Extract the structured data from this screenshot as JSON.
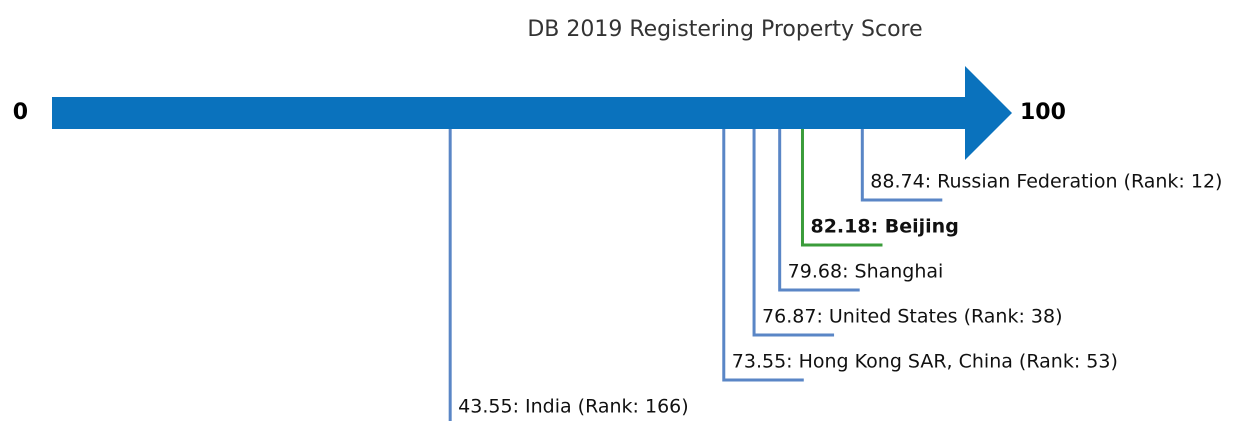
{
  "chart_data": {
    "type": "number-line",
    "title": "DB 2019 Registering Property Score",
    "xlim": [
      0,
      100
    ],
    "xticks": [
      0,
      100
    ],
    "axis_color": "#0a72bd",
    "values": [
      88.74,
      82.18,
      79.68,
      76.87,
      73.55,
      43.55
    ],
    "value_labels": [
      "88.74: Russian Federation (Rank: 12)",
      "82.18: Beijing",
      "79.68: Shanghai",
      "76.87: United States (Rank: 38)",
      "73.55: Hong Kong SAR, China (Rank: 53)",
      "43.55: India (Rank: 166)"
    ],
    "colors": [
      "#5a86c6",
      "#3a9c3a",
      "#5a86c6",
      "#5a86c6",
      "#5a86c6",
      "#5a86c6"
    ],
    "bold": [
      false,
      true,
      false,
      false,
      false,
      false
    ]
  }
}
